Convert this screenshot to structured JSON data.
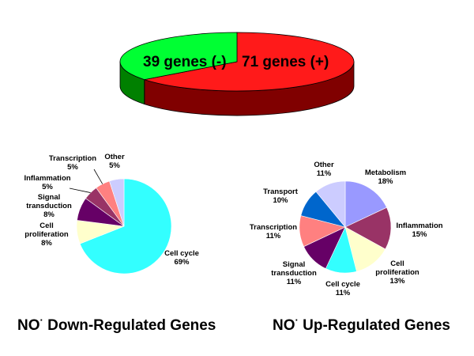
{
  "colors": {
    "background": "#ffffff",
    "minus_top": "#00ff33",
    "minus_side": "#008000",
    "plus_top": "#ff1a1a",
    "plus_side": "#800000"
  },
  "chart_data": [
    {
      "type": "pie",
      "style": "3d",
      "title": "",
      "slices": [
        {
          "label": "71 genes (+)",
          "value": 71,
          "color": "#ff1a1a"
        },
        {
          "label": "39 genes (-)",
          "value": 39,
          "color": "#00ff33"
        }
      ]
    },
    {
      "type": "pie",
      "title": "NO",
      "title_superscript": "·",
      "title_suffix": " Down-Regulated Genes",
      "slices": [
        {
          "name": "Cell cycle",
          "value": 69,
          "pct_label": "69%",
          "color": "#33ffff"
        },
        {
          "name": "Cell proliferation",
          "value": 8,
          "pct_label": "8%",
          "color": "#ffffcc"
        },
        {
          "name": "Signal transduction",
          "value": 8,
          "pct_label": "8%",
          "color": "#660066"
        },
        {
          "name": "Inflammation",
          "value": 5,
          "pct_label": "5%",
          "color": "#993366"
        },
        {
          "name": "Transcription",
          "value": 5,
          "pct_label": "5%",
          "color": "#ff8080"
        },
        {
          "name": "Other",
          "value": 5,
          "pct_label": "5%",
          "color": "#ccccff"
        }
      ]
    },
    {
      "type": "pie",
      "title": "NO",
      "title_superscript": "·",
      "title_suffix": " Up-Regulated Genes",
      "slices": [
        {
          "name": "Metabolism",
          "value": 18,
          "pct_label": "18%",
          "color": "#9999ff"
        },
        {
          "name": "Inflammation",
          "value": 15,
          "pct_label": "15%",
          "color": "#993366"
        },
        {
          "name": "Cell proliferation",
          "value": 13,
          "pct_label": "13%",
          "color": "#ffffcc"
        },
        {
          "name": "Cell cycle",
          "value": 11,
          "pct_label": "11%",
          "color": "#33ffff"
        },
        {
          "name": "Signal transduction",
          "value": 11,
          "pct_label": "11%",
          "color": "#660066"
        },
        {
          "name": "Transcription",
          "value": 11,
          "pct_label": "11%",
          "color": "#ff8080"
        },
        {
          "name": "Transport",
          "value": 10,
          "pct_label": "10%",
          "color": "#0066cc"
        },
        {
          "name": "Other",
          "value": 11,
          "pct_label": "11%",
          "color": "#ccccff"
        }
      ]
    }
  ]
}
